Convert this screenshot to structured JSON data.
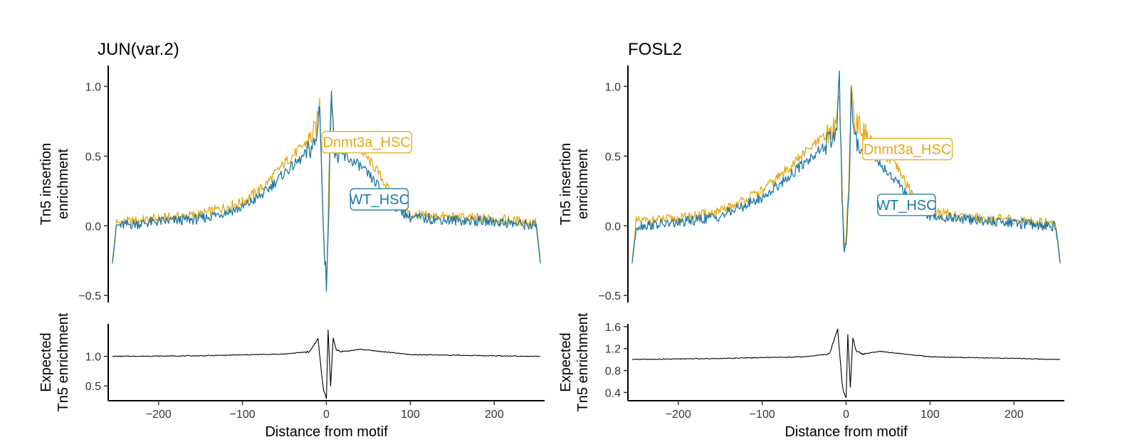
{
  "chart_data": [
    {
      "type": "line",
      "title": "JUN(var.2)",
      "xlabel": "Distance from motif",
      "xlim": [
        -260,
        260
      ],
      "x_ticks": [
        -200,
        -100,
        0,
        100,
        200
      ],
      "x_tick_labels": [
        "−200",
        "−100",
        "0",
        "100",
        "200"
      ],
      "top": {
        "ylabel": [
          "Tn5 insertion",
          "enrichment"
        ],
        "ylim": [
          -0.55,
          1.15
        ],
        "y_ticks": [
          -0.5,
          0.0,
          0.5,
          1.0
        ],
        "y_tick_labels": [
          "−0.5",
          "0.0",
          "0.5",
          "1.0"
        ],
        "series": [
          {
            "name": "Dnmt3a_HSC",
            "color": "#E6A817",
            "x": [
              -255,
              -250,
              -200,
              -150,
              -100,
              -75,
              -50,
              -30,
              -20,
              -12,
              -8,
              -5,
              -3,
              0,
              3,
              6,
              10,
              20,
              40,
              60,
              80,
              100,
              150,
              200,
              250,
              255
            ],
            "y": [
              -0.25,
              0.02,
              0.05,
              0.08,
              0.17,
              0.28,
              0.45,
              0.56,
              0.62,
              0.7,
              0.88,
              0.3,
              -0.1,
              -0.38,
              0.3,
              0.9,
              0.6,
              0.6,
              0.55,
              0.4,
              0.2,
              0.08,
              0.06,
              0.05,
              0.02,
              -0.25
            ]
          },
          {
            "name": "WT_HSC",
            "color": "#1A78A8",
            "x": [
              -255,
              -250,
              -200,
              -150,
              -100,
              -75,
              -50,
              -30,
              -20,
              -12,
              -8,
              -5,
              -3,
              0,
              3,
              6,
              10,
              20,
              40,
              60,
              80,
              100,
              150,
              200,
              250,
              255
            ],
            "y": [
              -0.27,
              0.0,
              0.03,
              0.05,
              0.13,
              0.23,
              0.38,
              0.48,
              0.55,
              0.6,
              0.9,
              0.25,
              -0.15,
              -0.42,
              0.2,
              1.02,
              0.5,
              0.5,
              0.43,
              0.3,
              0.15,
              0.06,
              0.04,
              0.03,
              0.0,
              -0.27
            ]
          }
        ],
        "labels": [
          {
            "text": "Dnmt3a_HSC",
            "series": "Dnmt3a_HSC",
            "x": 48,
            "y": 0.6
          },
          {
            "text": "WT_HSC",
            "series": "WT_HSC",
            "x": 63,
            "y": 0.19
          }
        ]
      },
      "bottom": {
        "ylabel": [
          "Expected",
          "Tn5 enrichment"
        ],
        "ylim": [
          0.25,
          1.55
        ],
        "y_ticks": [
          0.5,
          1.0
        ],
        "y_tick_labels": [
          "0.5",
          "1.0"
        ],
        "series": [
          {
            "name": "Expected",
            "color": "#000000",
            "x": [
              -255,
              -150,
              -50,
              -20,
              -10,
              -5,
              -3,
              0,
              2,
              5,
              8,
              12,
              20,
              40,
              100,
              200,
              255
            ],
            "y": [
              1.0,
              1.01,
              1.04,
              1.08,
              1.3,
              0.6,
              0.4,
              0.3,
              1.45,
              0.5,
              1.3,
              1.1,
              1.08,
              1.12,
              1.03,
              1.01,
              1.0
            ]
          }
        ]
      }
    },
    {
      "type": "line",
      "title": "FOSL2",
      "xlabel": "Distance from motif",
      "xlim": [
        -260,
        260
      ],
      "x_ticks": [
        -200,
        -100,
        0,
        100,
        200
      ],
      "x_tick_labels": [
        "−200",
        "−100",
        "0",
        "100",
        "200"
      ],
      "top": {
        "ylabel": [
          "Tn5 insertion",
          "enrichment"
        ],
        "ylim": [
          -0.55,
          1.15
        ],
        "y_ticks": [
          -0.5,
          0.0,
          0.5,
          1.0
        ],
        "y_tick_labels": [
          "−0.5",
          "0.0",
          "0.5",
          "1.0"
        ],
        "series": [
          {
            "name": "Dnmt3a_HSC",
            "color": "#E6A817",
            "x": [
              -255,
              -250,
              -200,
              -150,
              -100,
              -75,
              -50,
              -30,
              -20,
              -12,
              -8,
              -5,
              -3,
              0,
              3,
              6,
              10,
              20,
              40,
              60,
              80,
              100,
              150,
              200,
              250,
              255
            ],
            "y": [
              -0.25,
              0.03,
              0.05,
              0.1,
              0.25,
              0.38,
              0.52,
              0.62,
              0.66,
              0.72,
              1.0,
              0.3,
              -0.05,
              -0.15,
              0.25,
              1.0,
              0.75,
              0.68,
              0.55,
              0.42,
              0.22,
              0.1,
              0.06,
              0.04,
              0.02,
              -0.25
            ]
          },
          {
            "name": "WT_HSC",
            "color": "#1A78A8",
            "x": [
              -255,
              -250,
              -200,
              -150,
              -100,
              -75,
              -50,
              -30,
              -20,
              -12,
              -8,
              -5,
              -3,
              0,
              3,
              6,
              10,
              20,
              40,
              60,
              80,
              100,
              150,
              200,
              250,
              255
            ],
            "y": [
              -0.27,
              0.0,
              0.02,
              0.07,
              0.2,
              0.32,
              0.45,
              0.55,
              0.6,
              0.66,
              1.04,
              0.2,
              -0.1,
              -0.18,
              0.15,
              0.95,
              0.6,
              0.58,
              0.45,
              0.32,
              0.15,
              0.07,
              0.04,
              0.02,
              0.0,
              -0.27
            ]
          }
        ],
        "labels": [
          {
            "text": "Dnmt3a_HSC",
            "series": "Dnmt3a_HSC",
            "x": 73,
            "y": 0.55
          },
          {
            "text": "WT_HSC",
            "series": "WT_HSC",
            "x": 72,
            "y": 0.15
          }
        ]
      },
      "bottom": {
        "ylabel": [
          "Expected",
          "Tn5 enrichment"
        ],
        "ylim": [
          0.25,
          1.65
        ],
        "y_ticks": [
          0.4,
          0.8,
          1.2,
          1.6
        ],
        "y_tick_labels": [
          "0.4",
          "0.8",
          "1.2",
          "1.6"
        ],
        "series": [
          {
            "name": "Expected",
            "color": "#000000",
            "x": [
              -255,
              -150,
              -50,
              -20,
              -10,
              -5,
              -3,
              0,
              2,
              5,
              8,
              12,
              20,
              40,
              100,
              200,
              255
            ],
            "y": [
              1.0,
              1.02,
              1.05,
              1.1,
              1.55,
              0.6,
              0.4,
              0.3,
              1.45,
              0.5,
              1.4,
              1.15,
              1.1,
              1.15,
              1.05,
              1.02,
              1.0
            ]
          }
        ]
      }
    }
  ]
}
